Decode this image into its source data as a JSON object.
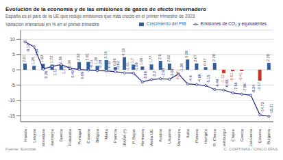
{
  "chart_data": {
    "type": "bar",
    "title": "Evolución de la economía y de las emisiones de gases de efecto invernadero",
    "subtitle": "España es el país de la UE que redujo emisiones que más creció en el primer trimestre de 2023",
    "y_label": "Variación interanual en % en el primer trimestre",
    "annotations": [
      "Fuente: Eurostat",
      "C. CORTINAS / CINCO DÍAS"
    ],
    "categories": [
      "Irlanda",
      "Letonia",
      "Eslovaquia",
      "Dinamarca",
      "Suecia",
      "Finlandia",
      "Portugal",
      "Croacia",
      "Bélgica",
      "Malta",
      "Francia",
      "ESPAÑA (*)",
      "P. Bajos",
      "Alemania",
      "Media UE",
      "Austria",
      "Lituania",
      "Rumanía",
      "Italia",
      "Polonia",
      "Hungría",
      "R. Checa",
      "Luxemburgo",
      "Chipre",
      "Grecia",
      "Eslovenia",
      "Estonia",
      "Bulgaria"
    ],
    "series": [
      {
        "name": "Crecimiento del PIB",
        "type": "bar",
        "color": "#2f5f9e",
        "colors": [
          "#2f5f9e",
          "#2f5f9e",
          "#2f5f9e",
          "#2f5f9e",
          "#2f5f9e",
          "#2f5f9e",
          "#2f5f9e",
          "#2f5f9e",
          "#2f5f9e",
          "#2f5f9e",
          "#2f5f9e",
          "#2f5f9e",
          "#2f5f9e",
          "#2f5f9e",
          "#2f5f9e",
          "#2f5f9e",
          "#2f5f9e",
          "#c0392b",
          "#2f5f9e",
          "#2f5f9e",
          "#2f5f9e",
          "#2f5f9e",
          "#c0392b",
          "#c0392b",
          "#c0392b",
          "#2f5f9e",
          "#c0392b",
          "#2f5f9e"
        ],
        "values": [
          2.01,
          1.28,
          1.93,
          1.72,
          1.56,
          0.34,
          2.52,
          2.61,
          1.28,
          3.16,
          0.86,
          4.16,
          1.7,
          1.06,
          1.77,
          2.9,
          2.02,
          -0.04,
          3.39,
          2.07,
          0.87,
          2.28,
          -1.12,
          -0.51,
          -0.41,
          null,
          -3.57,
          2.28
        ]
      },
      {
        "name": "Emisiones de CO₂ y equivalentes",
        "type": "line",
        "color": "#1a237e",
        "marker": "o",
        "line_style": "solid",
        "values": [
          9.13,
          7.54,
          0.26,
          1.11,
          1.71,
          0.49,
          0.09,
          -0.11,
          -0.28,
          -0.37,
          -0.62,
          -1.01,
          -1.06,
          -3.98,
          -3.2,
          -2.93,
          -3.09,
          -1.39,
          -4.6,
          -4.86,
          -5.15,
          -6.48,
          -6.65,
          -7.58,
          -7.96,
          -8.34,
          -14.73,
          -15.21
        ]
      }
    ],
    "ylim": [
      -17,
      13
    ],
    "yticks": [
      -15,
      -10,
      -5,
      0,
      5,
      10
    ],
    "grid": true,
    "legend": "upper right",
    "data_labels": true
  }
}
